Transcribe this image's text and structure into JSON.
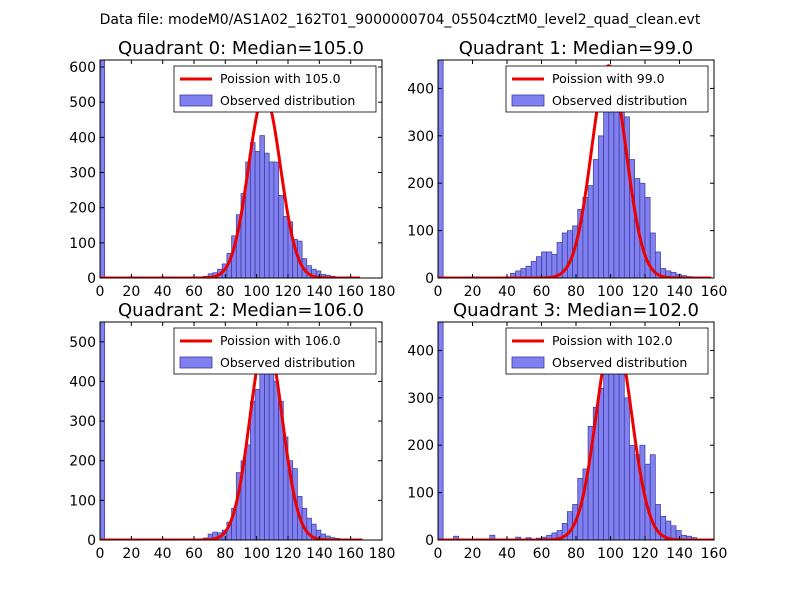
{
  "figure_title": "Data file: modeM0/AS1A02_162T01_9000000704_05504cztM0_level2_quad_clean.evt",
  "colors": {
    "bar_fill": "#8080f0",
    "bar_edge": "#3a3a9a",
    "line": "#ee0000"
  },
  "chart_data": [
    {
      "type": "bar",
      "title": "Quadrant 0: Median=105.0",
      "xlim": [
        0,
        180
      ],
      "ylim": [
        0,
        620
      ],
      "xticks": [
        0,
        20,
        40,
        60,
        80,
        100,
        120,
        140,
        160,
        180
      ],
      "yticks": [
        0,
        100,
        200,
        300,
        400,
        500,
        600
      ],
      "legend": {
        "loc": "top-right",
        "line_label": "Poission with 105.0",
        "bar_label": "Observed distribution"
      },
      "bin_width": 3,
      "bins": [
        0,
        3,
        63,
        66,
        69,
        72,
        75,
        78,
        81,
        84,
        87,
        90,
        93,
        96,
        99,
        102,
        105,
        108,
        111,
        114,
        117,
        120,
        123,
        126,
        129,
        132,
        135,
        138,
        141,
        144,
        147,
        150,
        153
      ],
      "counts": [
        620,
        0,
        3,
        5,
        12,
        15,
        25,
        40,
        70,
        120,
        180,
        240,
        330,
        385,
        360,
        405,
        355,
        330,
        330,
        235,
        175,
        160,
        110,
        105,
        55,
        35,
        25,
        20,
        10,
        8,
        5,
        3,
        2
      ],
      "poisson_mean": 105.0,
      "poisson_peak": 520
    },
    {
      "type": "bar",
      "title": "Quadrant 1: Median=99.0",
      "xlim": [
        0,
        160
      ],
      "ylim": [
        0,
        460
      ],
      "xticks": [
        0,
        20,
        40,
        60,
        80,
        100,
        120,
        140,
        160
      ],
      "yticks": [
        0,
        100,
        200,
        300,
        400
      ],
      "legend": {
        "loc": "top-right",
        "line_label": "Poission with 99.0",
        "bar_label": "Observed distribution"
      },
      "bin_width": 3,
      "bins": [
        0,
        3,
        42,
        45,
        48,
        51,
        54,
        57,
        60,
        63,
        66,
        69,
        72,
        75,
        78,
        81,
        84,
        87,
        90,
        93,
        96,
        99,
        102,
        105,
        108,
        111,
        114,
        117,
        120,
        123,
        126,
        129,
        132,
        135,
        138,
        141,
        144
      ],
      "counts": [
        460,
        0,
        10,
        15,
        20,
        25,
        35,
        45,
        55,
        55,
        50,
        75,
        95,
        100,
        110,
        145,
        170,
        195,
        250,
        300,
        380,
        440,
        400,
        360,
        340,
        250,
        210,
        200,
        170,
        95,
        55,
        20,
        15,
        12,
        8,
        5,
        3
      ],
      "poisson_mean": 99.0,
      "poisson_peak": 448
    },
    {
      "type": "bar",
      "title": "Quadrant 2: Median=106.0",
      "xlim": [
        0,
        180
      ],
      "ylim": [
        0,
        550
      ],
      "xticks": [
        0,
        20,
        40,
        60,
        80,
        100,
        120,
        140,
        160,
        180
      ],
      "yticks": [
        0,
        100,
        200,
        300,
        400,
        500
      ],
      "legend": {
        "loc": "top-right",
        "line_label": "Poission with 106.0",
        "bar_label": "Observed distribution"
      },
      "bin_width": 3,
      "bins": [
        0,
        3,
        63,
        66,
        69,
        72,
        75,
        78,
        81,
        84,
        87,
        90,
        93,
        96,
        99,
        102,
        105,
        108,
        111,
        114,
        117,
        120,
        123,
        126,
        129,
        132,
        135,
        138,
        141,
        144,
        147,
        150,
        153,
        156
      ],
      "counts": [
        550,
        0,
        3,
        5,
        15,
        20,
        18,
        25,
        45,
        80,
        170,
        200,
        240,
        350,
        380,
        420,
        500,
        430,
        400,
        350,
        260,
        200,
        180,
        110,
        80,
        55,
        40,
        25,
        15,
        10,
        6,
        4,
        2,
        1
      ],
      "poisson_mean": 106.0,
      "poisson_peak": 510
    },
    {
      "type": "bar",
      "title": "Quadrant 3: Median=102.0",
      "xlim": [
        0,
        160
      ],
      "ylim": [
        0,
        460
      ],
      "xticks": [
        0,
        20,
        40,
        60,
        80,
        100,
        120,
        140,
        160
      ],
      "yticks": [
        0,
        100,
        200,
        300,
        400
      ],
      "legend": {
        "loc": "top-right",
        "line_label": "Poission with 102.0",
        "bar_label": "Observed distribution"
      },
      "bin_width": 3,
      "bins": [
        0,
        3,
        9,
        30,
        45,
        51,
        57,
        60,
        63,
        66,
        69,
        72,
        75,
        78,
        81,
        84,
        87,
        90,
        93,
        96,
        99,
        102,
        105,
        108,
        111,
        114,
        117,
        120,
        123,
        126,
        129,
        132,
        135,
        138,
        141,
        144,
        147
      ],
      "counts": [
        460,
        0,
        8,
        10,
        6,
        5,
        4,
        6,
        10,
        15,
        20,
        35,
        60,
        75,
        130,
        150,
        240,
        280,
        320,
        400,
        380,
        420,
        350,
        300,
        200,
        180,
        200,
        160,
        180,
        75,
        50,
        40,
        30,
        20,
        10,
        8,
        5
      ],
      "poisson_mean": 102.0,
      "poisson_peak": 445
    }
  ]
}
